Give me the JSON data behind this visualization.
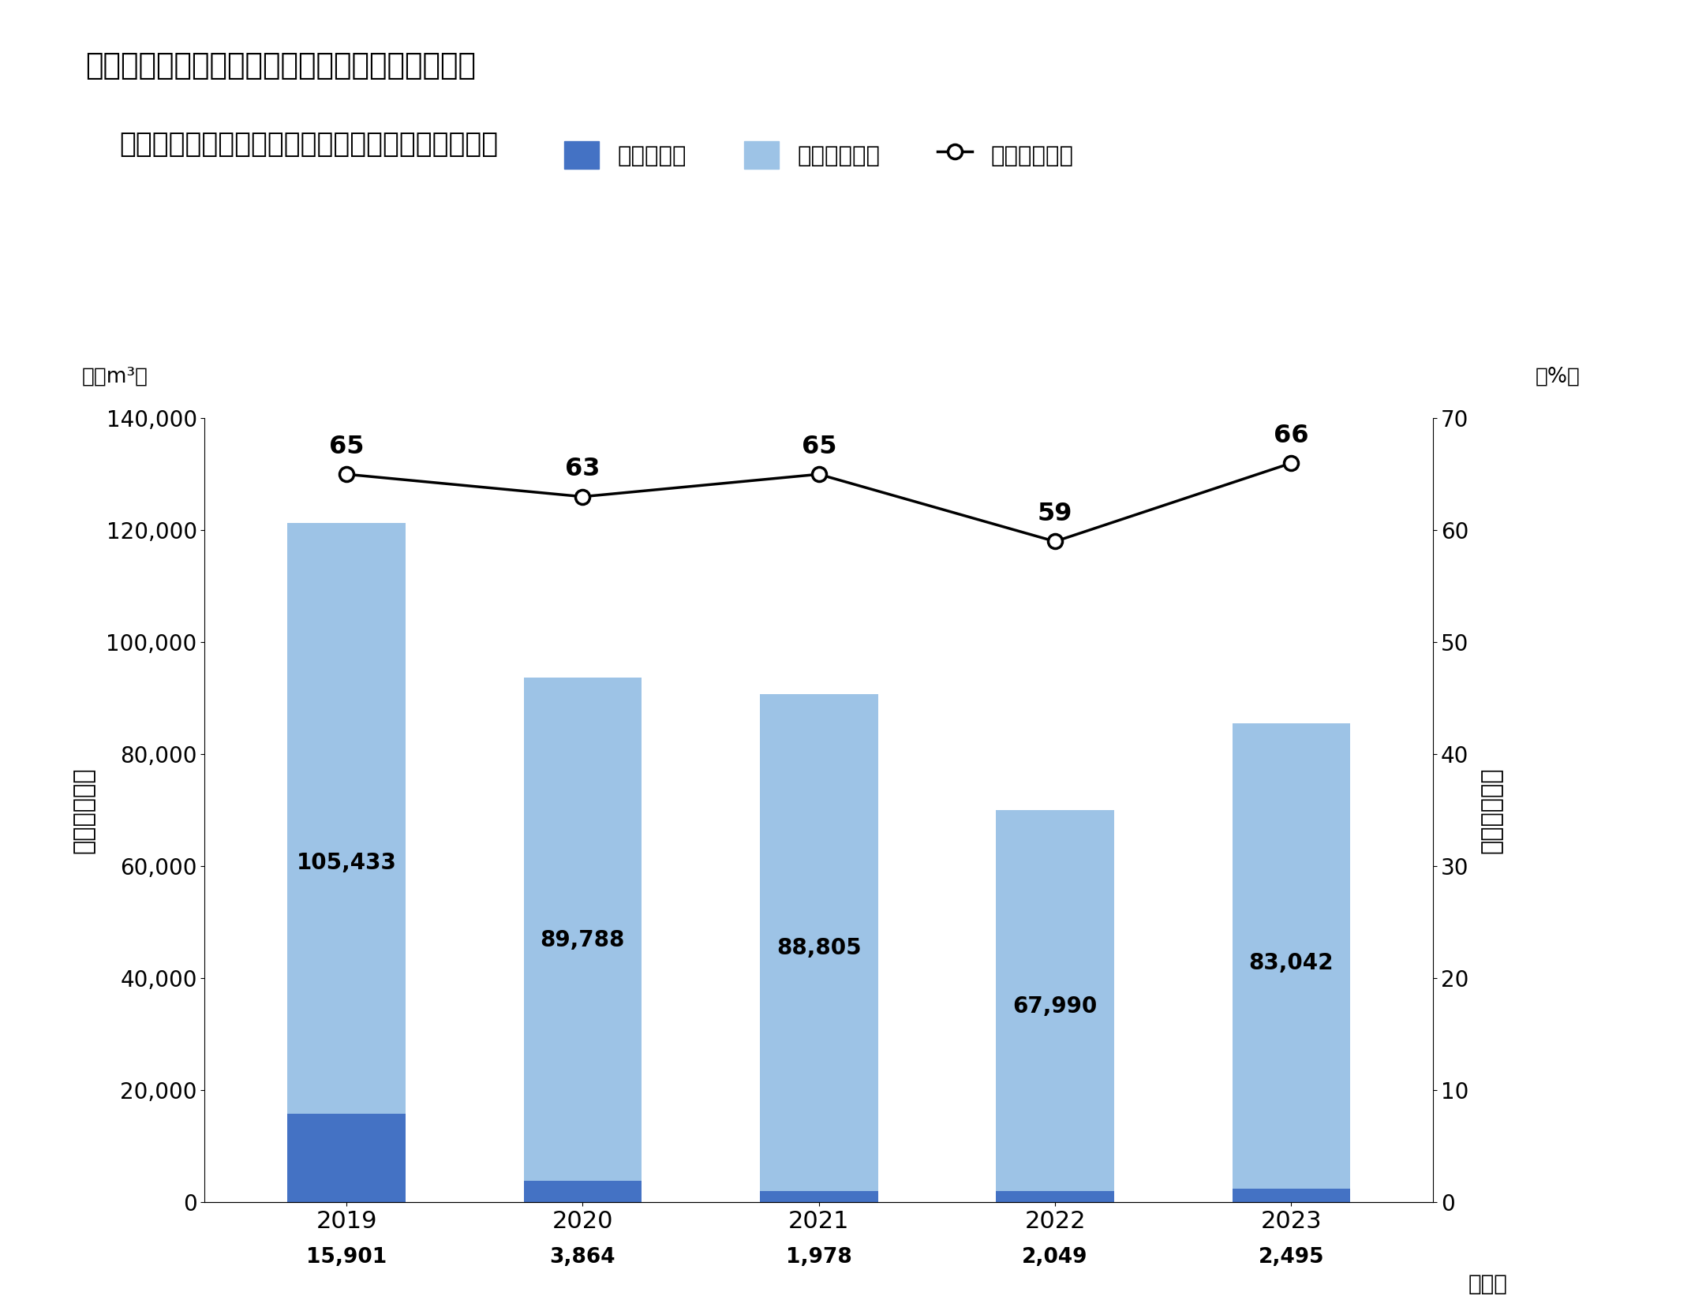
{
  "title_line1": "グループ全体の水の循環的利用量と循環的利用率",
  "title_line2": "（循環的利用量／（用水使用量＋循環的利用量））",
  "years": [
    "2019",
    "2020",
    "2021",
    "2022",
    "2023"
  ],
  "reuse_water": [
    15901,
    3864,
    1978,
    2049,
    2495
  ],
  "recycle_water": [
    105433,
    89788,
    88805,
    67990,
    83042
  ],
  "recycle_rate": [
    65,
    63,
    65,
    59,
    66
  ],
  "bar_color_reuse": "#4472C4",
  "bar_color_recycle": "#9DC3E6",
  "line_color": "#000000",
  "background_color": "#ffffff",
  "legend_label_reuse": "リユース水",
  "legend_label_recycle": "リサイクル水",
  "legend_label_rate": "循環的利用率",
  "ylabel_left": "循環的利用量",
  "ylabel_right": "循環的利用率",
  "unit_left": "（千m³）",
  "unit_right": "（%）",
  "xlabel_suffix": "（年）",
  "ylim_left": [
    0,
    140000
  ],
  "ylim_right": [
    0,
    70
  ],
  "yticks_left": [
    0,
    20000,
    40000,
    60000,
    80000,
    100000,
    120000,
    140000
  ],
  "yticks_right": [
    0,
    10,
    20,
    30,
    40,
    50,
    60,
    70
  ],
  "figsize": [
    21.62,
    16.57
  ],
  "dpi": 100
}
